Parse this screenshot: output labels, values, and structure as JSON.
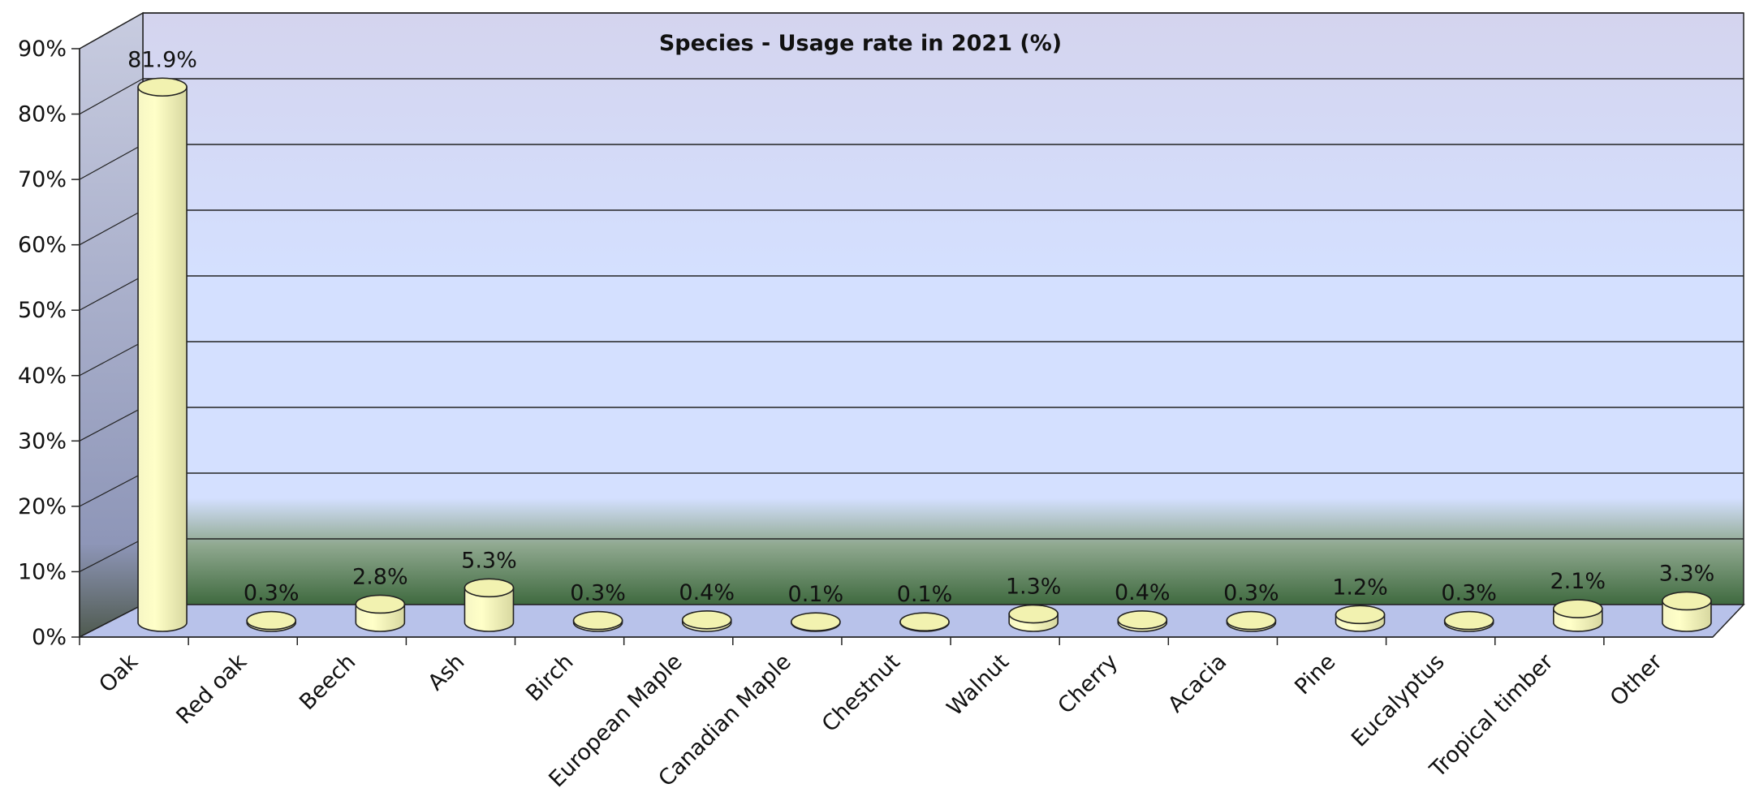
{
  "chart_data": {
    "type": "bar",
    "title": "Species - Usage rate in 2021 (%)",
    "xlabel": "",
    "ylabel": "",
    "ylim": [
      0,
      90
    ],
    "yticks": [
      0,
      10,
      20,
      30,
      40,
      50,
      60,
      70,
      80,
      90
    ],
    "ytick_labels": [
      "0%",
      "10%",
      "20%",
      "30%",
      "40%",
      "50%",
      "60%",
      "70%",
      "80%",
      "90%"
    ],
    "categories": [
      "Oak",
      "Red oak",
      "Beech",
      "Ash",
      "Birch",
      "European Maple",
      "Canadian Maple",
      "Chestnut",
      "Walnut",
      "Cherry",
      "Acacia",
      "Pine",
      "Eucalyptus",
      "Tropical timber",
      "Other"
    ],
    "values": [
      81.9,
      0.3,
      2.8,
      5.3,
      0.3,
      0.4,
      0.1,
      0.1,
      1.3,
      0.4,
      0.3,
      1.2,
      0.3,
      2.1,
      3.3
    ],
    "data_labels": [
      "81.9%",
      "0.3%",
      "2.8%",
      "5.3%",
      "0.3%",
      "0.4%",
      "0.1%",
      "0.1%",
      "1.3%",
      "0.4%",
      "0.3%",
      "1.2%",
      "0.3%",
      "2.1%",
      "3.3%"
    ],
    "grid": true,
    "legend": "none",
    "style": "3d-cylinder",
    "colors": {
      "bar_fill": "#ffffc8",
      "bar_top": "#f2f2b0",
      "bar_outline": "#222222",
      "wall_top": "#d4d4ee",
      "wall_mid": "#d4e0ff",
      "wall_bottom": "#3f6a3f",
      "side_wall": "#8e96b8",
      "floor": "#b8c2ea",
      "grid": "#222222"
    }
  }
}
